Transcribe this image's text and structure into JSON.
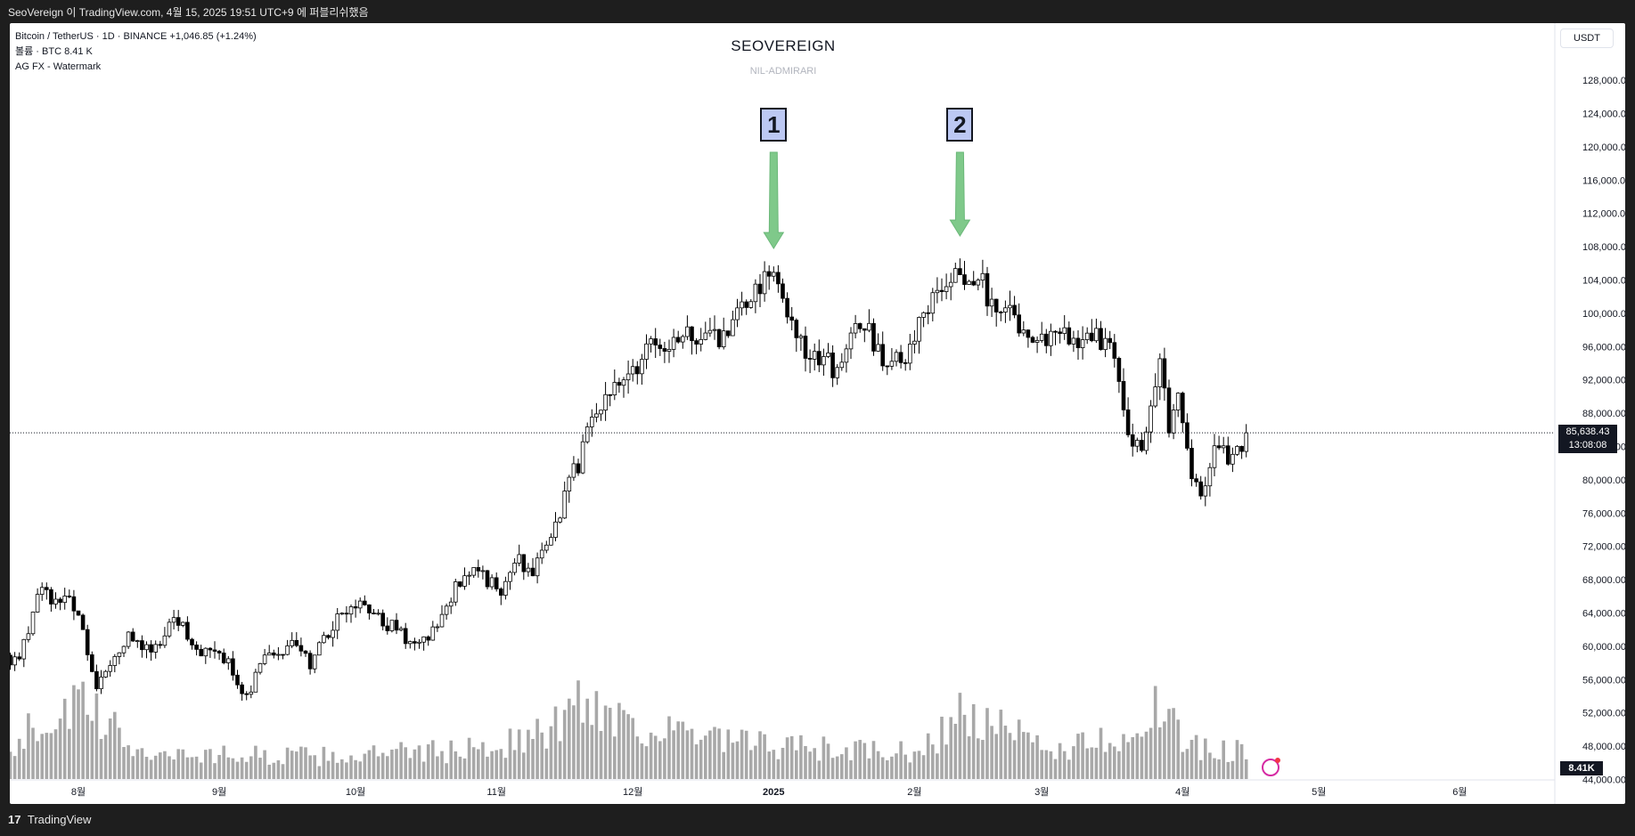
{
  "header": {
    "caption": "SeoVereign 이 TradingView.com, 4월 15, 2025 19:51 UTC+9 에 퍼블리쉬했음"
  },
  "footer": {
    "brand": "TradingView",
    "logo_glyph": "17"
  },
  "legend": {
    "symbol_line": "Bitcoin / TetherUS · 1D · BINANCE  +1,046.85 (+1.24%)",
    "volume_line": "볼륨 · BTC  8.41 K",
    "indicator_line": "AG FX - Watermark"
  },
  "watermark": {
    "title": "SEOVEREIGN",
    "subtitle": "NIL-ADMIRARI"
  },
  "currency_button": "USDT",
  "last_price": {
    "price": "85,638.43",
    "countdown": "13:08:08",
    "value": 85638.43
  },
  "volume_badge": "8.41K",
  "annotations": [
    {
      "label": "1",
      "date_index": 178,
      "price": 108000
    },
    {
      "label": "2",
      "date_index": 219,
      "price": 109500
    }
  ],
  "colors": {
    "up": "#ffffff",
    "down": "#000000",
    "outline": "#000000",
    "volume": "#a8a8a8",
    "arrow": "#7fc98a",
    "annotation_fill": "#bcc8f3"
  },
  "chart_data": {
    "type": "candlestick",
    "symbol": "Bitcoin / TetherUS",
    "interval": "1D",
    "exchange": "BINANCE",
    "currency": "USDT",
    "ylim": [
      40000,
      130000
    ],
    "y_ticks": [
      44000,
      48000,
      52000,
      56000,
      60000,
      64000,
      68000,
      72000,
      76000,
      80000,
      84000,
      88000,
      92000,
      96000,
      100000,
      104000,
      108000,
      112000,
      116000,
      120000,
      124000,
      128000
    ],
    "y_tick_labels": [
      "44,000.00",
      "48,000.00",
      "52,000.00",
      "56,000.00",
      "60,000.00",
      "64,000.00",
      "68,000.00",
      "72,000.00",
      "76,000.00",
      "80,000.00",
      "84,000.00",
      "88,000.00",
      "92,000.00",
      "96,000.00",
      "100,000.00",
      "104,000.00",
      "108,000.00",
      "112,000.00",
      "116,000.00",
      "120,000.00",
      "124,000.00",
      "128,000.00"
    ],
    "start_date": "2024-07-07",
    "end_date": "2025-04-15",
    "x_ticks": [
      {
        "date": "2024-08-01",
        "label": "8월"
      },
      {
        "date": "2024-09-01",
        "label": "9월"
      },
      {
        "date": "2024-10-01",
        "label": "10월"
      },
      {
        "date": "2024-11-01",
        "label": "11월"
      },
      {
        "date": "2024-12-01",
        "label": "12월"
      },
      {
        "date": "2025-01-01",
        "label": "2025"
      },
      {
        "date": "2025-02-01",
        "label": "2월"
      },
      {
        "date": "2025-03-01",
        "label": "3월"
      },
      {
        "date": "2025-04-01",
        "label": "4월"
      },
      {
        "date": "2025-05-01",
        "label": "5월"
      },
      {
        "date": "2025-06-01",
        "label": "6월"
      }
    ],
    "close_anchors": [
      [
        0,
        56500
      ],
      [
        6,
        58300
      ],
      [
        12,
        58000
      ],
      [
        16,
        66500
      ],
      [
        19,
        65500
      ],
      [
        22,
        66200
      ],
      [
        25,
        64300
      ],
      [
        29,
        54100
      ],
      [
        30,
        56500
      ],
      [
        32,
        57800
      ],
      [
        36,
        60800
      ],
      [
        42,
        59400
      ],
      [
        46,
        64300
      ],
      [
        52,
        59200
      ],
      [
        58,
        58000
      ],
      [
        62,
        54100
      ],
      [
        66,
        58400
      ],
      [
        72,
        60000
      ],
      [
        76,
        58000
      ],
      [
        82,
        63200
      ],
      [
        86,
        65000
      ],
      [
        90,
        63400
      ],
      [
        95,
        62100
      ],
      [
        99,
        60100
      ],
      [
        104,
        62500
      ],
      [
        108,
        67000
      ],
      [
        113,
        69000
      ],
      [
        118,
        66900
      ],
      [
        122,
        70000
      ],
      [
        125,
        69400
      ],
      [
        128,
        72300
      ],
      [
        131,
        75800
      ],
      [
        133,
        80300
      ],
      [
        135,
        82000
      ],
      [
        138,
        88200
      ],
      [
        142,
        91000
      ],
      [
        147,
        92500
      ],
      [
        149,
        95500
      ],
      [
        152,
        97000
      ],
      [
        156,
        95800
      ],
      [
        158,
        97900
      ],
      [
        161,
        96000
      ],
      [
        164,
        98800
      ],
      [
        167,
        96600
      ],
      [
        170,
        100000
      ],
      [
        173,
        101000
      ],
      [
        176,
        104300
      ],
      [
        178,
        106000
      ],
      [
        180,
        101200
      ],
      [
        183,
        97400
      ],
      [
        186,
        94100
      ],
      [
        189,
        94600
      ],
      [
        191,
        93200
      ],
      [
        193,
        94500
      ],
      [
        196,
        97600
      ],
      [
        199,
        98200
      ],
      [
        202,
        94000
      ],
      [
        205,
        94200
      ],
      [
        207,
        94600
      ],
      [
        210,
        99500
      ],
      [
        214,
        102200
      ],
      [
        216,
        104400
      ],
      [
        219,
        106100
      ],
      [
        221,
        102600
      ],
      [
        223,
        104700
      ],
      [
        225,
        102300
      ],
      [
        227,
        100700
      ],
      [
        230,
        102000
      ],
      [
        233,
        97000
      ],
      [
        236,
        97800
      ],
      [
        239,
        96500
      ],
      [
        242,
        97500
      ],
      [
        245,
        96300
      ],
      [
        248,
        97500
      ],
      [
        250,
        96000
      ],
      [
        252,
        96000
      ],
      [
        254,
        91500
      ],
      [
        256,
        86400
      ],
      [
        258,
        84000
      ],
      [
        260,
        84500
      ],
      [
        263,
        94200
      ],
      [
        265,
        86100
      ],
      [
        267,
        89900
      ],
      [
        270,
        80700
      ],
      [
        272,
        78500
      ],
      [
        275,
        83700
      ],
      [
        278,
        82500
      ],
      [
        281,
        83800
      ],
      [
        284,
        84300
      ],
      [
        287,
        87000
      ],
      [
        289,
        86900
      ],
      [
        291,
        85500
      ],
      [
        293,
        82600
      ],
      [
        296,
        84300
      ],
      [
        299,
        82400
      ],
      [
        301,
        83200
      ],
      [
        303,
        78400
      ],
      [
        305,
        76300
      ],
      [
        307,
        79200
      ],
      [
        310,
        83600
      ],
      [
        312,
        84500
      ]
    ],
    "volume_anchors": [
      [
        0,
        4.5
      ],
      [
        10,
        5.5
      ],
      [
        24,
        12.0
      ],
      [
        29,
        9.5
      ],
      [
        40,
        4.0
      ],
      [
        80,
        3.5
      ],
      [
        110,
        4.5
      ],
      [
        128,
        7.0
      ],
      [
        134,
        11.5
      ],
      [
        138,
        12.0
      ],
      [
        150,
        8.0
      ],
      [
        165,
        6.0
      ],
      [
        180,
        5.0
      ],
      [
        210,
        4.0
      ],
      [
        219,
        10.0
      ],
      [
        240,
        4.5
      ],
      [
        255,
        7.0
      ],
      [
        262,
        10.5
      ],
      [
        270,
        5.0
      ],
      [
        290,
        4.0
      ],
      [
        300,
        5.0
      ],
      [
        305,
        11.0
      ],
      [
        310,
        5.0
      ],
      [
        312,
        3.5
      ]
    ],
    "volume_ylim": [
      0,
      20
    ]
  }
}
